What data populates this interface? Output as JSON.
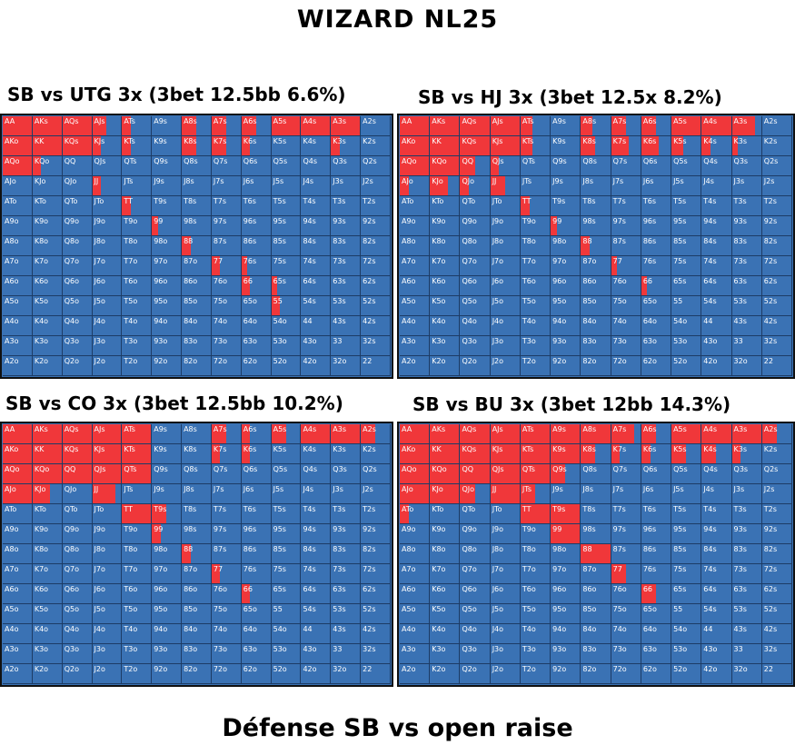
{
  "header": {
    "title": "WIZARD NL25"
  },
  "footer": {
    "title": "Défense SB vs open raise"
  },
  "colors": {
    "threebet": "#f0373a",
    "other": "#3a72b4",
    "border": "#111111"
  },
  "chart_data": [
    {
      "type": "heatmap",
      "title": "SB vs UTG 3x (3bet 12.5bb 6.6%)",
      "ranks": [
        "A",
        "K",
        "Q",
        "J",
        "T",
        "9",
        "8",
        "7",
        "6",
        "5",
        "4",
        "3",
        "2"
      ],
      "threebet_freq": [
        [
          1,
          1,
          1,
          0.5,
          0.3,
          0,
          0.5,
          0.5,
          0.5,
          1,
          1,
          1,
          0
        ],
        [
          1,
          1,
          1,
          0.3,
          0.3,
          0,
          0.5,
          0.5,
          0.3,
          0,
          0,
          0.3,
          0
        ],
        [
          1,
          0.3,
          0,
          0,
          0,
          0,
          0,
          0,
          0,
          0,
          0,
          0,
          0
        ],
        [
          0,
          0,
          0,
          0.3,
          0,
          0,
          0,
          0,
          0,
          0,
          0,
          0,
          0
        ],
        [
          0,
          0,
          0,
          0,
          0.3,
          0,
          0,
          0,
          0,
          0,
          0,
          0,
          0
        ],
        [
          0,
          0,
          0,
          0,
          0,
          0.2,
          0,
          0,
          0,
          0,
          0,
          0,
          0
        ],
        [
          0,
          0,
          0,
          0,
          0,
          0,
          0.3,
          0,
          0,
          0,
          0,
          0,
          0
        ],
        [
          0,
          0,
          0,
          0,
          0,
          0,
          0,
          0.3,
          0.2,
          0,
          0,
          0,
          0
        ],
        [
          0,
          0,
          0,
          0,
          0,
          0,
          0,
          0,
          0.3,
          0.2,
          0,
          0,
          0
        ],
        [
          0,
          0,
          0,
          0,
          0,
          0,
          0,
          0,
          0,
          0.3,
          0,
          0,
          0
        ],
        [
          0,
          0,
          0,
          0,
          0,
          0,
          0,
          0,
          0,
          0,
          0,
          0,
          0
        ],
        [
          0,
          0,
          0,
          0,
          0,
          0,
          0,
          0,
          0,
          0,
          0,
          0,
          0
        ],
        [
          0,
          0,
          0,
          0,
          0,
          0,
          0,
          0,
          0,
          0,
          0,
          0,
          0
        ]
      ]
    },
    {
      "type": "heatmap",
      "title": "SB vs HJ 3x (3bet 12.5x 8.2%)",
      "ranks": [
        "A",
        "K",
        "Q",
        "J",
        "T",
        "9",
        "8",
        "7",
        "6",
        "5",
        "4",
        "3",
        "2"
      ],
      "threebet_freq": [
        [
          1,
          1,
          1,
          1,
          0.4,
          0,
          0.4,
          0.5,
          0.5,
          1,
          1,
          0.8,
          0
        ],
        [
          1,
          1,
          1,
          1,
          0.4,
          0,
          0.5,
          0.6,
          0.6,
          0.4,
          0.3,
          0.2,
          0
        ],
        [
          1,
          1,
          0.5,
          0.3,
          0,
          0,
          0,
          0,
          0,
          0,
          0,
          0,
          0
        ],
        [
          0.3,
          0.6,
          0.3,
          0.5,
          0,
          0,
          0,
          0,
          0,
          0,
          0,
          0,
          0
        ],
        [
          0,
          0,
          0,
          0,
          0.3,
          0,
          0,
          0,
          0,
          0,
          0,
          0,
          0
        ],
        [
          0,
          0,
          0,
          0,
          0,
          0.2,
          0,
          0,
          0,
          0,
          0,
          0,
          0
        ],
        [
          0,
          0,
          0,
          0,
          0,
          0,
          0.3,
          0,
          0,
          0,
          0,
          0,
          0
        ],
        [
          0,
          0,
          0,
          0,
          0,
          0,
          0,
          0.2,
          0,
          0,
          0,
          0,
          0
        ],
        [
          0,
          0,
          0,
          0,
          0,
          0,
          0,
          0,
          0.2,
          0,
          0,
          0,
          0
        ],
        [
          0,
          0,
          0,
          0,
          0,
          0,
          0,
          0,
          0,
          0,
          0,
          0,
          0
        ],
        [
          0,
          0,
          0,
          0,
          0,
          0,
          0,
          0,
          0,
          0,
          0,
          0,
          0
        ],
        [
          0,
          0,
          0,
          0,
          0,
          0,
          0,
          0,
          0,
          0,
          0,
          0,
          0
        ],
        [
          0,
          0,
          0,
          0,
          0,
          0,
          0,
          0,
          0,
          0,
          0,
          0,
          0
        ]
      ]
    },
    {
      "type": "heatmap",
      "title": "SB vs CO 3x (3bet 12.5bb 10.2%)",
      "ranks": [
        "A",
        "K",
        "Q",
        "J",
        "T",
        "9",
        "8",
        "7",
        "6",
        "5",
        "4",
        "3",
        "2"
      ],
      "threebet_freq": [
        [
          1,
          1,
          1,
          1,
          1,
          0,
          0,
          0.5,
          0.3,
          0.5,
          1,
          1,
          0.5
        ],
        [
          1,
          1,
          1,
          1,
          1,
          0,
          0,
          0.3,
          0.3,
          0,
          0,
          0,
          0
        ],
        [
          1,
          1,
          1,
          1,
          1,
          0,
          0,
          0,
          0,
          0,
          0,
          0,
          0
        ],
        [
          1,
          0.6,
          0,
          0.8,
          0,
          0,
          0,
          0,
          0,
          0,
          0,
          0,
          0
        ],
        [
          0,
          0,
          0,
          0,
          1,
          0.5,
          0,
          0,
          0,
          0,
          0,
          0,
          0
        ],
        [
          0,
          0,
          0,
          0,
          0,
          0.3,
          0,
          0,
          0,
          0,
          0,
          0,
          0
        ],
        [
          0,
          0,
          0,
          0,
          0,
          0,
          0.3,
          0,
          0,
          0,
          0,
          0,
          0
        ],
        [
          0,
          0,
          0,
          0,
          0,
          0,
          0,
          0.3,
          0,
          0,
          0,
          0,
          0
        ],
        [
          0,
          0,
          0,
          0,
          0,
          0,
          0,
          0,
          0.3,
          0,
          0,
          0,
          0
        ],
        [
          0,
          0,
          0,
          0,
          0,
          0,
          0,
          0,
          0,
          0,
          0,
          0,
          0
        ],
        [
          0,
          0,
          0,
          0,
          0,
          0,
          0,
          0,
          0,
          0,
          0,
          0,
          0
        ],
        [
          0,
          0,
          0,
          0,
          0,
          0,
          0,
          0,
          0,
          0,
          0,
          0,
          0
        ],
        [
          0,
          0,
          0,
          0,
          0,
          0,
          0,
          0,
          0,
          0,
          0,
          0,
          0
        ]
      ]
    },
    {
      "type": "heatmap",
      "title": "SB vs BU 3x (3bet 12bb 14.3%)",
      "ranks": [
        "A",
        "K",
        "Q",
        "J",
        "T",
        "9",
        "8",
        "7",
        "6",
        "5",
        "4",
        "3",
        "2"
      ],
      "threebet_freq": [
        [
          1,
          1,
          1,
          1,
          1,
          1,
          1,
          0.8,
          0.5,
          1,
          1,
          1,
          0.5
        ],
        [
          1,
          1,
          1,
          1,
          1,
          1,
          0.5,
          0.3,
          0.3,
          0.5,
          0.5,
          0.3,
          0
        ],
        [
          1,
          1,
          1,
          1,
          1,
          0.5,
          0,
          0,
          0,
          0,
          0,
          0,
          0
        ],
        [
          1,
          1,
          0.5,
          1,
          0.5,
          0,
          0,
          0,
          0,
          0,
          0,
          0,
          0
        ],
        [
          0.3,
          0,
          0,
          0,
          1,
          1,
          0,
          0,
          0,
          0,
          0,
          0,
          0
        ],
        [
          0,
          0,
          0,
          0,
          0,
          1,
          0,
          0,
          0,
          0,
          0,
          0,
          0
        ],
        [
          0,
          0,
          0,
          0,
          0,
          0,
          1,
          0,
          0,
          0,
          0,
          0,
          0
        ],
        [
          0,
          0,
          0,
          0,
          0,
          0,
          0,
          0.5,
          0,
          0,
          0,
          0,
          0
        ],
        [
          0,
          0,
          0,
          0,
          0,
          0,
          0,
          0,
          0.5,
          0,
          0,
          0,
          0
        ],
        [
          0,
          0,
          0,
          0,
          0,
          0,
          0,
          0,
          0,
          0,
          0,
          0,
          0
        ],
        [
          0,
          0,
          0,
          0,
          0,
          0,
          0,
          0,
          0,
          0,
          0,
          0,
          0
        ],
        [
          0,
          0,
          0,
          0,
          0,
          0,
          0,
          0,
          0,
          0,
          0,
          0,
          0
        ],
        [
          0,
          0,
          0,
          0,
          0,
          0,
          0,
          0,
          0,
          0,
          0,
          0,
          0
        ]
      ]
    }
  ]
}
